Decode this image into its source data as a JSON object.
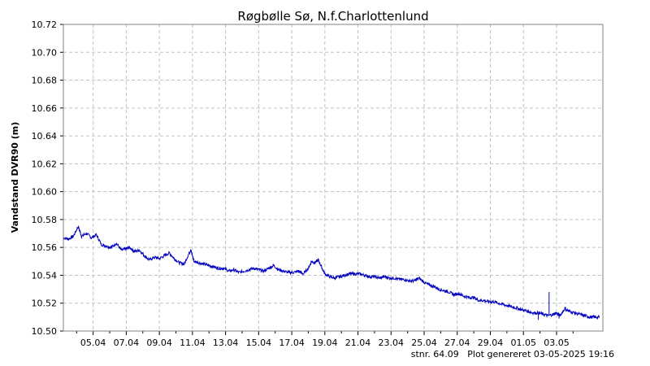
{
  "chart_data": {
    "type": "line",
    "title": "Røgbølle Sø, N.f.Charlottenlund",
    "ylabel": "Vandstand DVR90 (m)",
    "xlabel": "",
    "ylim": [
      10.5,
      10.72
    ],
    "yticks": [
      10.5,
      10.52,
      10.54,
      10.56,
      10.58,
      10.6,
      10.62,
      10.64,
      10.66,
      10.68,
      10.7,
      10.72
    ],
    "xlim": [
      3.2,
      35.8
    ],
    "x_unit": "day of April (2025); 31 = 01.05",
    "xticks": [
      {
        "x": 5,
        "label": "05.04"
      },
      {
        "x": 7,
        "label": "07.04"
      },
      {
        "x": 9,
        "label": "09.04"
      },
      {
        "x": 11,
        "label": "11.04"
      },
      {
        "x": 13,
        "label": "13.04"
      },
      {
        "x": 15,
        "label": "15.04"
      },
      {
        "x": 17,
        "label": "17.04"
      },
      {
        "x": 19,
        "label": "19.04"
      },
      {
        "x": 21,
        "label": "21.04"
      },
      {
        "x": 23,
        "label": "23.04"
      },
      {
        "x": 25,
        "label": "25.04"
      },
      {
        "x": 27,
        "label": "27.04"
      },
      {
        "x": 29,
        "label": "29.04"
      },
      {
        "x": 31,
        "label": "01.05"
      },
      {
        "x": 33,
        "label": "03.05"
      }
    ],
    "grid": true,
    "line_color": "#0000c0",
    "series": [
      {
        "x": [
          3.2,
          3.5,
          3.8,
          4.1,
          4.3,
          4.6,
          4.9,
          5.2,
          5.5,
          5.8,
          6.1,
          6.4,
          6.7,
          7.0,
          7.2,
          7.5,
          7.8,
          8.1,
          8.4,
          8.7,
          9.0,
          9.3,
          9.6,
          9.9,
          10.2,
          10.5,
          10.8,
          10.9,
          11.1,
          11.4,
          11.7,
          12.0,
          12.3,
          12.6,
          12.9,
          13.2,
          13.5,
          13.8,
          14.1,
          14.4,
          14.7,
          15.0,
          15.3,
          15.6,
          15.9,
          16.2,
          16.5,
          16.8,
          17.1,
          17.4,
          17.7,
          18.0,
          18.2,
          18.4,
          18.6,
          18.8,
          19.0,
          19.3,
          19.6,
          19.9,
          20.2,
          20.5,
          20.8,
          21.1,
          21.4,
          21.7,
          22.0,
          22.3,
          22.6,
          22.9,
          23.2,
          23.5,
          23.8,
          24.1,
          24.4,
          24.7,
          25.0,
          25.3,
          25.6,
          25.9,
          26.2,
          26.5,
          26.8,
          27.1,
          27.4,
          27.7,
          28.0,
          28.3,
          28.6,
          28.9,
          29.2,
          29.5,
          29.8,
          30.1,
          30.4,
          30.7,
          31.0,
          31.3,
          31.6,
          31.9,
          32.2,
          32.5,
          32.8,
          33.0,
          33.2,
          33.5,
          33.8,
          34.1,
          34.4,
          34.7,
          35.0,
          35.3,
          35.6
        ],
        "y": [
          10.567,
          10.566,
          10.568,
          10.575,
          10.568,
          10.57,
          10.567,
          10.569,
          10.562,
          10.561,
          10.56,
          10.563,
          10.558,
          10.559,
          10.56,
          10.557,
          10.558,
          10.554,
          10.551,
          10.553,
          10.552,
          10.554,
          10.556,
          10.552,
          10.549,
          10.548,
          10.556,
          10.558,
          10.55,
          10.549,
          10.548,
          10.547,
          10.546,
          10.545,
          10.545,
          10.543,
          10.544,
          10.542,
          10.543,
          10.544,
          10.545,
          10.544,
          10.543,
          10.545,
          10.547,
          10.544,
          10.543,
          10.542,
          10.542,
          10.543,
          10.541,
          10.545,
          10.55,
          10.549,
          10.551,
          10.546,
          10.541,
          10.539,
          10.538,
          10.539,
          10.54,
          10.541,
          10.541,
          10.541,
          10.54,
          10.539,
          10.539,
          10.538,
          10.539,
          10.538,
          10.538,
          10.537,
          10.537,
          10.536,
          10.536,
          10.538,
          10.535,
          10.533,
          10.532,
          10.53,
          10.529,
          10.528,
          10.526,
          10.527,
          10.525,
          10.524,
          10.524,
          10.522,
          10.522,
          10.521,
          10.521,
          10.52,
          10.519,
          10.518,
          10.517,
          10.516,
          10.515,
          10.514,
          10.513,
          10.513,
          10.512,
          10.511,
          10.512,
          10.513,
          10.511,
          10.516,
          10.514,
          10.513,
          10.512,
          10.511,
          10.51,
          10.51,
          10.51
        ]
      }
    ],
    "spikes": [
      {
        "x": 32.55,
        "y": 10.528
      },
      {
        "x": 31.9,
        "y": 10.508
      },
      {
        "x": 33.15,
        "y": 10.509
      }
    ],
    "footer": "stnr. 64.09   Plot genereret 03-05-2025 19:16"
  }
}
